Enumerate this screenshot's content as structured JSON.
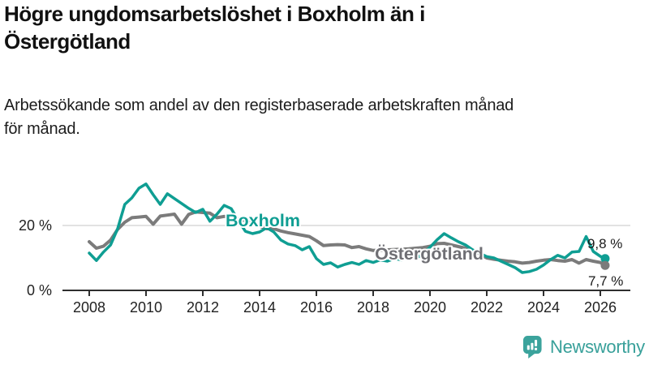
{
  "header": {
    "title": "Högre ungdomsarbetslöshet i Boxholm än i\nÖstergötland",
    "subtitle": "Arbetssökande som andel av den registerbaserade arbetskraften månad\nför månad."
  },
  "chart_data": {
    "type": "line",
    "title": "Högre ungdomsarbetslöshet i Boxholm än i Östergötland",
    "subtitle": "Arbetssökande som andel av den registerbaserade arbetskraften månad för månad.",
    "unit": "%",
    "xlabel": "",
    "ylabel": "",
    "xlim": [
      2007.1,
      2027.1
    ],
    "ylim": [
      0,
      37
    ],
    "grid": "single horizontal gridline at 20 %",
    "legend_position": "labels drawn on lines inside plot",
    "xticks": [
      2008,
      2010,
      2012,
      2014,
      2016,
      2018,
      2020,
      2022,
      2024,
      2026
    ],
    "yticks": [
      {
        "value": 0,
        "label": "0 %"
      },
      {
        "value": 20,
        "label": "20 %"
      }
    ],
    "x": [
      2008.0,
      2008.25,
      2008.5,
      2008.75,
      2009.0,
      2009.25,
      2009.5,
      2009.75,
      2010.0,
      2010.25,
      2010.5,
      2010.75,
      2011.0,
      2011.25,
      2011.5,
      2011.75,
      2012.0,
      2012.25,
      2012.5,
      2012.75,
      2013.0,
      2013.25,
      2013.5,
      2013.75,
      2014.0,
      2014.25,
      2014.5,
      2014.75,
      2015.0,
      2015.25,
      2015.5,
      2015.75,
      2016.0,
      2016.25,
      2016.5,
      2016.75,
      2017.0,
      2017.25,
      2017.5,
      2017.75,
      2018.0,
      2018.25,
      2018.5,
      2018.75,
      2019.0,
      2019.25,
      2019.5,
      2019.75,
      2020.0,
      2020.25,
      2020.5,
      2020.75,
      2021.0,
      2021.25,
      2021.5,
      2021.75,
      2022.0,
      2022.25,
      2022.5,
      2022.75,
      2023.0,
      2023.25,
      2023.5,
      2023.75,
      2024.0,
      2024.25,
      2024.5,
      2024.75,
      2025.0,
      2025.25,
      2025.5,
      2025.75,
      2026.0,
      2026.17
    ],
    "series": [
      {
        "id": "boxholm",
        "name": "Boxholm",
        "color": "#0f9e93",
        "label_color": "#0f9e93",
        "end_label": "9,8 %",
        "end_value": 9.8,
        "label_pos": {
          "year": 2012.8,
          "value": 19.75
        },
        "values": [
          11.5,
          9.2,
          11.8,
          14.0,
          19.0,
          26.5,
          28.5,
          31.5,
          32.8,
          29.5,
          26.5,
          29.8,
          28.3,
          26.8,
          25.3,
          24.0,
          25.0,
          21.3,
          23.5,
          26.2,
          25.2,
          21.5,
          18.2,
          17.5,
          18.0,
          19.3,
          18.0,
          15.5,
          14.3,
          13.8,
          12.5,
          13.5,
          9.8,
          8.0,
          8.5,
          7.2,
          8.0,
          8.6,
          8.0,
          9.2,
          8.6,
          9.4,
          9.0,
          9.8,
          9.4,
          10.3,
          9.8,
          11.2,
          13.3,
          15.6,
          17.5,
          16.2,
          15.0,
          14.0,
          12.5,
          11.5,
          10.4,
          10.0,
          9.0,
          8.0,
          7.0,
          5.5,
          5.8,
          6.5,
          7.8,
          9.5,
          10.8,
          10.0,
          11.8,
          12.0,
          16.6,
          12.0,
          10.5,
          9.8
        ]
      },
      {
        "id": "ostergotland",
        "name": "Östergötland",
        "color": "#7b7b7b",
        "label_color": "#6f6f74",
        "end_label": "7,7 %",
        "end_value": 7.7,
        "label_pos": {
          "year": 2018.06,
          "value": 9.5
        },
        "values": [
          15.0,
          13.0,
          13.6,
          15.5,
          18.8,
          21.0,
          22.4,
          22.6,
          22.8,
          20.4,
          22.9,
          23.2,
          23.5,
          20.4,
          23.4,
          24.2,
          24.0,
          23.8,
          22.4,
          22.8,
          22.4,
          22.0,
          21.5,
          21.0,
          19.8,
          19.0,
          19.0,
          18.3,
          17.8,
          17.4,
          17.0,
          16.6,
          15.3,
          13.8,
          14.0,
          14.1,
          14.0,
          13.2,
          13.5,
          12.8,
          12.3,
          12.4,
          12.5,
          12.6,
          12.7,
          12.8,
          13.0,
          13.2,
          13.6,
          14.4,
          14.5,
          14.0,
          13.5,
          13.0,
          12.4,
          11.2,
          10.0,
          9.6,
          9.3,
          9.0,
          8.8,
          8.4,
          8.6,
          9.0,
          9.3,
          9.5,
          9.2,
          9.0,
          9.5,
          8.4,
          9.5,
          9.0,
          8.6,
          7.7
        ]
      }
    ],
    "colors": {
      "gridline": "#d9d9d9",
      "axis": "#2f2f2f",
      "tick_text": "#222222"
    }
  },
  "footer": {
    "brand": "Newsworthy",
    "logo_color": "#3ba39c"
  }
}
